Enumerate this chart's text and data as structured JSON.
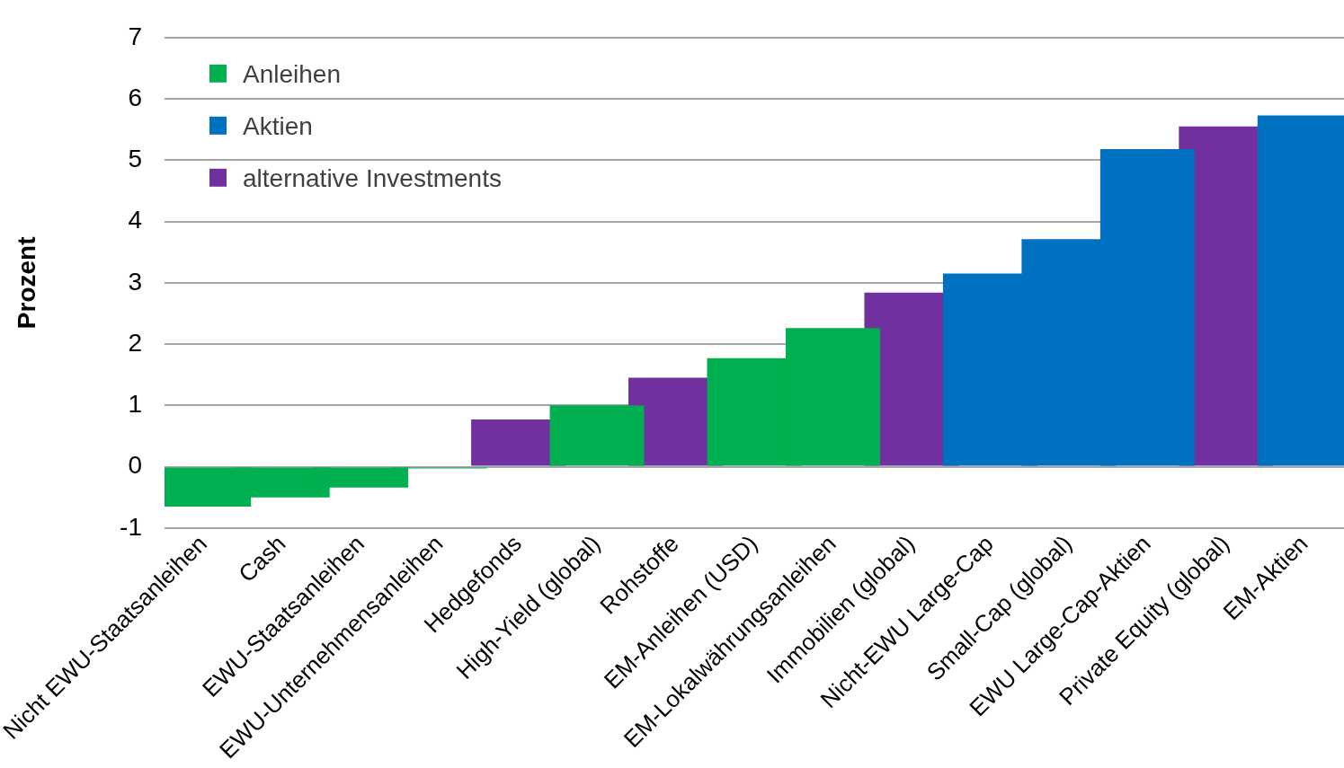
{
  "chart_data": {
    "type": "bar",
    "ylabel": "Prozent",
    "categories": [
      "Nicht EWU-Staatsanleihen",
      "Cash",
      "EWU-Staatsanleihen",
      "EWU-Unternehmensanleihen",
      "Hedgefonds",
      "High-Yield (global)",
      "Rohstoffe",
      "EM-Anleihen (USD)",
      "EM-Lokalwährungsanleihen",
      "Immobilien (global)",
      "Nicht-EWU Large-Cap",
      "Small-Cap (global)",
      "EWU Large-Cap-Aktien",
      "Private Equity (global)",
      "EM-Aktien"
    ],
    "series": [
      {
        "name": "Anleihen",
        "color": "#00b050",
        "values": [
          -0.65,
          -0.5,
          -0.34,
          -0.03,
          null,
          1.0,
          null,
          1.77,
          2.26,
          null,
          null,
          null,
          null,
          null,
          null
        ]
      },
      {
        "name": "Aktien",
        "color": "#0070c0",
        "values": [
          null,
          null,
          null,
          null,
          null,
          null,
          null,
          null,
          null,
          null,
          3.15,
          3.71,
          5.18,
          null,
          5.73
        ]
      },
      {
        "name": "alternative Investments",
        "color": "#7030a0",
        "values": [
          null,
          null,
          null,
          null,
          0.77,
          null,
          1.45,
          null,
          null,
          2.84,
          null,
          null,
          null,
          5.55,
          null
        ]
      }
    ],
    "ylim": [
      -1,
      7
    ],
    "yticks": [
      -1,
      0,
      1,
      2,
      3,
      4,
      5,
      6,
      7
    ],
    "grid": "y",
    "legend": "top left"
  }
}
